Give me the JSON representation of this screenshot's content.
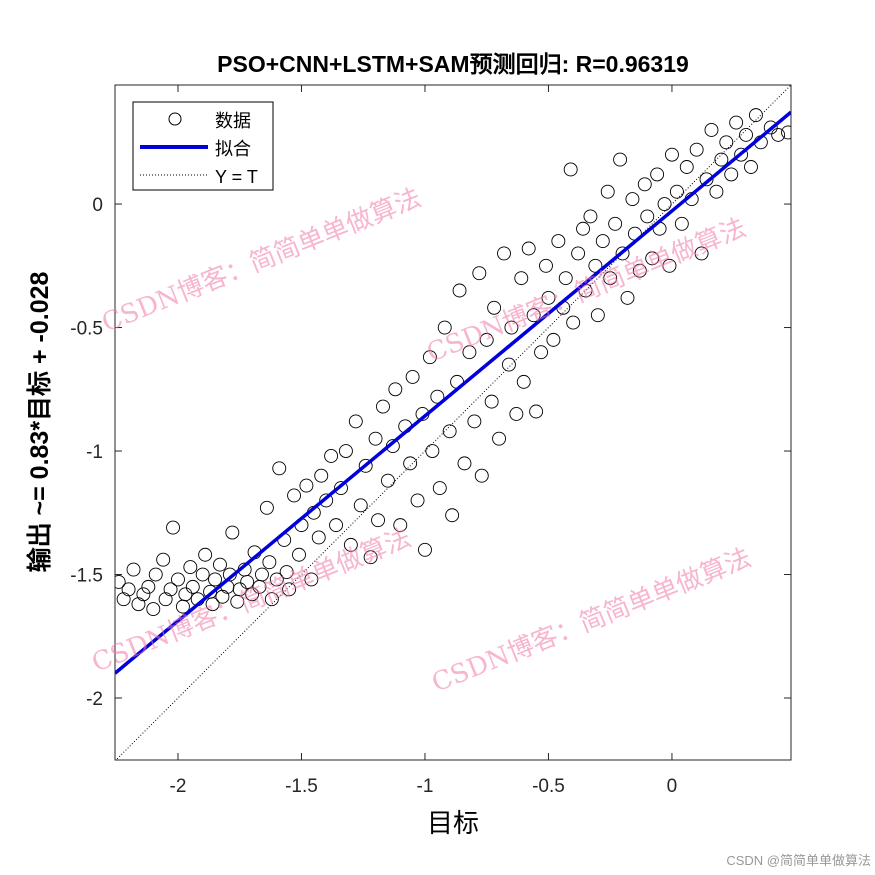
{
  "chart_data": {
    "type": "scatter",
    "title": "PSO+CNN+LSTM+SAM预测回归: R=0.96319",
    "xlabel": "目标",
    "ylabel": "输出 ~= 0.83*目标 + -0.028",
    "xlim": [
      -2.255,
      0.482
    ],
    "ylim": [
      -2.251,
      0.482
    ],
    "xticks": [
      -2,
      -1.5,
      -1,
      -0.5,
      0
    ],
    "yticks": [
      -2,
      -1.5,
      -1,
      -0.5,
      0
    ],
    "xtick_labels": [
      "-2",
      "-1.5",
      "-1",
      "-0.5",
      "0"
    ],
    "ytick_labels": [
      "-2",
      "-1.5",
      "-1",
      "-0.5",
      "0"
    ],
    "grid": false,
    "legend": {
      "placement": "top-left",
      "entries": [
        "数据",
        "拟合",
        "Y = T"
      ]
    },
    "fit": {
      "slope": 0.83,
      "intercept": -0.028,
      "color": "#0000dd"
    },
    "identity_line": {
      "slope": 1,
      "intercept": 0,
      "style": "dotted"
    },
    "series": [
      {
        "marker": "open-circle",
        "points": [
          [
            -2.24,
            -1.53
          ],
          [
            -2.22,
            -1.6
          ],
          [
            -2.2,
            -1.56
          ],
          [
            -2.18,
            -1.48
          ],
          [
            -2.16,
            -1.62
          ],
          [
            -2.14,
            -1.58
          ],
          [
            -2.12,
            -1.55
          ],
          [
            -2.1,
            -1.64
          ],
          [
            -2.09,
            -1.5
          ],
          [
            -2.06,
            -1.44
          ],
          [
            -2.05,
            -1.6
          ],
          [
            -2.03,
            -1.56
          ],
          [
            -2.02,
            -1.31
          ],
          [
            -2.0,
            -1.52
          ],
          [
            -1.98,
            -1.63
          ],
          [
            -1.97,
            -1.58
          ],
          [
            -1.95,
            -1.47
          ],
          [
            -1.94,
            -1.55
          ],
          [
            -1.92,
            -1.6
          ],
          [
            -1.9,
            -1.5
          ],
          [
            -1.89,
            -1.42
          ],
          [
            -1.87,
            -1.57
          ],
          [
            -1.86,
            -1.62
          ],
          [
            -1.85,
            -1.52
          ],
          [
            -1.83,
            -1.46
          ],
          [
            -1.82,
            -1.59
          ],
          [
            -1.8,
            -1.55
          ],
          [
            -1.79,
            -1.5
          ],
          [
            -1.78,
            -1.33
          ],
          [
            -1.76,
            -1.61
          ],
          [
            -1.75,
            -1.56
          ],
          [
            -1.73,
            -1.48
          ],
          [
            -1.72,
            -1.53
          ],
          [
            -1.7,
            -1.58
          ],
          [
            -1.69,
            -1.41
          ],
          [
            -1.67,
            -1.55
          ],
          [
            -1.66,
            -1.5
          ],
          [
            -1.64,
            -1.23
          ],
          [
            -1.63,
            -1.45
          ],
          [
            -1.62,
            -1.6
          ],
          [
            -1.6,
            -1.52
          ],
          [
            -1.59,
            -1.07
          ],
          [
            -1.57,
            -1.36
          ],
          [
            -1.56,
            -1.49
          ],
          [
            -1.55,
            -1.56
          ],
          [
            -1.53,
            -1.18
          ],
          [
            -1.51,
            -1.42
          ],
          [
            -1.5,
            -1.3
          ],
          [
            -1.48,
            -1.14
          ],
          [
            -1.46,
            -1.52
          ],
          [
            -1.45,
            -1.25
          ],
          [
            -1.43,
            -1.35
          ],
          [
            -1.42,
            -1.1
          ],
          [
            -1.4,
            -1.2
          ],
          [
            -1.38,
            -1.02
          ],
          [
            -1.36,
            -1.3
          ],
          [
            -1.34,
            -1.15
          ],
          [
            -1.32,
            -1.0
          ],
          [
            -1.3,
            -1.38
          ],
          [
            -1.28,
            -0.88
          ],
          [
            -1.26,
            -1.22
          ],
          [
            -1.24,
            -1.06
          ],
          [
            -1.22,
            -1.43
          ],
          [
            -1.2,
            -0.95
          ],
          [
            -1.19,
            -1.28
          ],
          [
            -1.17,
            -0.82
          ],
          [
            -1.15,
            -1.12
          ],
          [
            -1.13,
            -0.98
          ],
          [
            -1.12,
            -0.75
          ],
          [
            -1.1,
            -1.3
          ],
          [
            -1.08,
            -0.9
          ],
          [
            -1.06,
            -1.05
          ],
          [
            -1.05,
            -0.7
          ],
          [
            -1.03,
            -1.2
          ],
          [
            -1.01,
            -0.85
          ],
          [
            -1.0,
            -1.4
          ],
          [
            -0.98,
            -0.62
          ],
          [
            -0.97,
            -1.0
          ],
          [
            -0.95,
            -0.78
          ],
          [
            -0.94,
            -1.15
          ],
          [
            -0.92,
            -0.5
          ],
          [
            -0.9,
            -0.92
          ],
          [
            -0.89,
            -1.26
          ],
          [
            -0.87,
            -0.72
          ],
          [
            -0.86,
            -0.35
          ],
          [
            -0.84,
            -1.05
          ],
          [
            -0.82,
            -0.6
          ],
          [
            -0.8,
            -0.88
          ],
          [
            -0.78,
            -0.28
          ],
          [
            -0.77,
            -1.1
          ],
          [
            -0.75,
            -0.55
          ],
          [
            -0.73,
            -0.8
          ],
          [
            -0.72,
            -0.42
          ],
          [
            -0.7,
            -0.95
          ],
          [
            -0.68,
            -0.2
          ],
          [
            -0.66,
            -0.65
          ],
          [
            -0.65,
            -0.5
          ],
          [
            -0.63,
            -0.85
          ],
          [
            -0.61,
            -0.3
          ],
          [
            -0.6,
            -0.72
          ],
          [
            -0.58,
            -0.18
          ],
          [
            -0.56,
            -0.45
          ],
          [
            -0.55,
            -0.84
          ],
          [
            -0.53,
            -0.6
          ],
          [
            -0.51,
            -0.25
          ],
          [
            -0.5,
            -0.38
          ],
          [
            -0.48,
            -0.55
          ],
          [
            -0.46,
            -0.15
          ],
          [
            -0.44,
            -0.42
          ],
          [
            -0.43,
            -0.3
          ],
          [
            -0.41,
            0.14
          ],
          [
            -0.4,
            -0.48
          ],
          [
            -0.38,
            -0.2
          ],
          [
            -0.36,
            -0.1
          ],
          [
            -0.35,
            -0.35
          ],
          [
            -0.33,
            -0.05
          ],
          [
            -0.31,
            -0.25
          ],
          [
            -0.3,
            -0.45
          ],
          [
            -0.28,
            -0.15
          ],
          [
            -0.26,
            0.05
          ],
          [
            -0.25,
            -0.3
          ],
          [
            -0.23,
            -0.08
          ],
          [
            -0.21,
            0.18
          ],
          [
            -0.2,
            -0.2
          ],
          [
            -0.18,
            -0.38
          ],
          [
            -0.16,
            0.02
          ],
          [
            -0.15,
            -0.12
          ],
          [
            -0.13,
            -0.27
          ],
          [
            -0.11,
            0.08
          ],
          [
            -0.1,
            -0.05
          ],
          [
            -0.08,
            -0.22
          ],
          [
            -0.06,
            0.12
          ],
          [
            -0.05,
            -0.1
          ],
          [
            -0.03,
            0.0
          ],
          [
            -0.01,
            -0.25
          ],
          [
            0.0,
            0.2
          ],
          [
            0.02,
            0.05
          ],
          [
            0.04,
            -0.08
          ],
          [
            0.06,
            0.15
          ],
          [
            0.08,
            0.02
          ],
          [
            0.1,
            0.22
          ],
          [
            0.12,
            -0.2
          ],
          [
            0.14,
            0.1
          ],
          [
            0.16,
            0.3
          ],
          [
            0.18,
            0.05
          ],
          [
            0.2,
            0.18
          ],
          [
            0.22,
            0.25
          ],
          [
            0.24,
            0.12
          ],
          [
            0.26,
            0.33
          ],
          [
            0.28,
            0.2
          ],
          [
            0.3,
            0.28
          ],
          [
            0.32,
            0.15
          ],
          [
            0.34,
            0.36
          ],
          [
            0.36,
            0.25
          ],
          [
            0.4,
            0.31
          ],
          [
            0.43,
            0.28
          ],
          [
            0.47,
            0.29
          ]
        ]
      }
    ]
  },
  "watermarks": [
    "CSDN博客：简简单单做算法",
    "CSDN博客：简简单单做算法",
    "CSDN博客：简简单单做算法"
  ],
  "credit": "CSDN @简简单单做算法"
}
